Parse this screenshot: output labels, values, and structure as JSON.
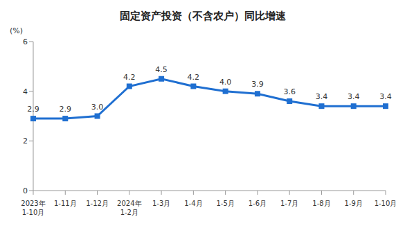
{
  "chart_data": {
    "type": "line",
    "title": "固定资产投资（不含农户）同比增速",
    "y_label": "(%)",
    "categories": [
      "2023年\n1-10月",
      "1-11月",
      "1-12月",
      "2024年\n1-2月",
      "1-3月",
      "1-4月",
      "1-5月",
      "1-6月",
      "1-7月",
      "1-8月",
      "1-9月",
      "1-10月"
    ],
    "values": [
      2.9,
      2.9,
      3.0,
      4.2,
      4.5,
      4.2,
      4.0,
      3.9,
      3.6,
      3.4,
      3.4,
      3.4
    ],
    "value_labels": [
      "2.9",
      "2.9",
      "3.0",
      "4.2",
      "4.5",
      "4.2",
      "4.0",
      "3.9",
      "3.6",
      "3.4",
      "3.4",
      "3.4"
    ],
    "color": "#1f6fd1",
    "ylim": [
      0,
      6
    ],
    "yticks": [
      0,
      2,
      4,
      6
    ],
    "grid": false,
    "data_labels": true,
    "marker": "square"
  }
}
